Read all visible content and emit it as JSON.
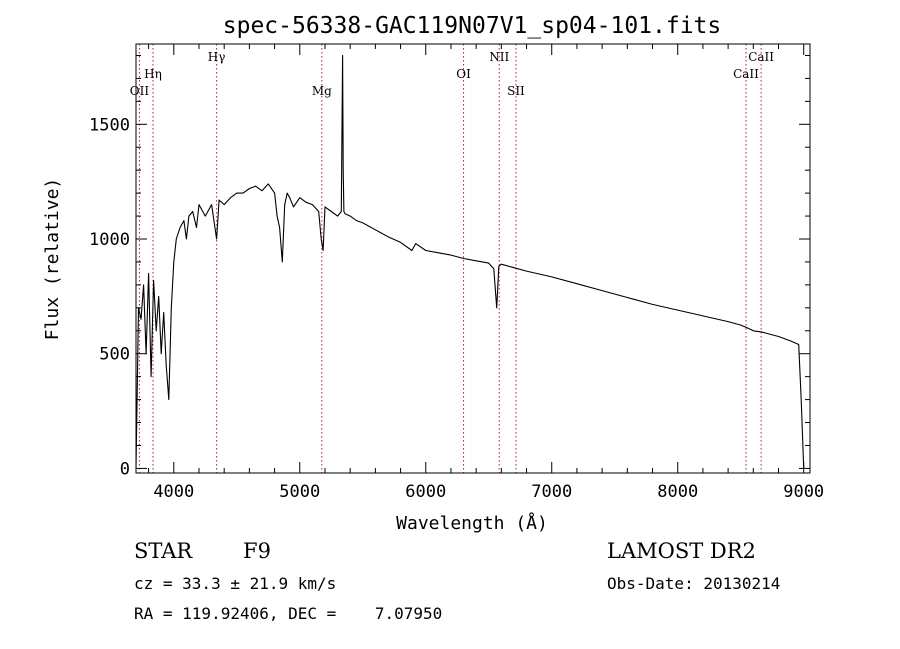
{
  "chart_data": {
    "type": "line",
    "title": "spec-56338-GAC119N07V1_sp04-101.fits",
    "xlabel": "Wavelength (Å)",
    "ylabel": "Flux (relative)",
    "xlim": [
      3700,
      9050
    ],
    "ylim": [
      -20,
      1850
    ],
    "xticks": [
      4000,
      5000,
      6000,
      7000,
      8000,
      9000
    ],
    "yticks": [
      0,
      500,
      1000,
      1500
    ],
    "grid": false,
    "series": [
      {
        "x": [
          3700,
          3720,
          3740,
          3760,
          3780,
          3800,
          3820,
          3840,
          3860,
          3880,
          3900,
          3920,
          3940,
          3960,
          3980,
          4000,
          4020,
          4050,
          4080,
          4100,
          4120,
          4150,
          4180,
          4200,
          4250,
          4300,
          4340,
          4360,
          4400,
          4450,
          4500,
          4550,
          4600,
          4650,
          4700,
          4750,
          4800,
          4820,
          4840,
          4861,
          4880,
          4900,
          4920,
          4950,
          5000,
          5050,
          5100,
          5150,
          5170,
          5185,
          5200,
          5250,
          5300,
          5330,
          5340,
          5345,
          5350,
          5360,
          5400,
          5450,
          5500,
          5600,
          5700,
          5800,
          5890,
          5920,
          6000,
          6100,
          6200,
          6300,
          6400,
          6500,
          6540,
          6563,
          6580,
          6600,
          6700,
          6800,
          7000,
          7200,
          7400,
          7600,
          7800,
          8000,
          8200,
          8400,
          8498,
          8542,
          8600,
          8662,
          8700,
          8800,
          8900,
          8960,
          8980,
          9000
        ],
        "y": [
          0,
          700,
          650,
          800,
          500,
          850,
          400,
          820,
          600,
          750,
          500,
          680,
          450,
          300,
          700,
          900,
          1000,
          1050,
          1080,
          1000,
          1100,
          1120,
          1050,
          1150,
          1100,
          1150,
          1000,
          1170,
          1150,
          1180,
          1200,
          1200,
          1220,
          1230,
          1210,
          1240,
          1200,
          1100,
          1050,
          900,
          1150,
          1200,
          1180,
          1140,
          1180,
          1160,
          1150,
          1120,
          1000,
          950,
          1140,
          1120,
          1100,
          1120,
          1800,
          1300,
          1120,
          1110,
          1100,
          1080,
          1070,
          1040,
          1010,
          985,
          950,
          980,
          950,
          940,
          930,
          915,
          905,
          895,
          870,
          700,
          880,
          890,
          875,
          860,
          835,
          805,
          775,
          745,
          715,
          690,
          665,
          640,
          625,
          615,
          600,
          595,
          590,
          575,
          555,
          540,
          300,
          0
        ]
      }
    ],
    "lines": [
      {
        "label": "OII",
        "x": 3727,
        "row": 2
      },
      {
        "label": "Hη",
        "x": 3835,
        "row": 1
      },
      {
        "label": "Hγ",
        "x": 4340,
        "row": 0
      },
      {
        "label": "Mg",
        "x": 5175,
        "row": 2
      },
      {
        "label": "OI",
        "x": 6300,
        "row": 1
      },
      {
        "label": "NII",
        "x": 6583,
        "row": 0
      },
      {
        "label": "SII",
        "x": 6716,
        "row": 2
      },
      {
        "label": "CaII",
        "x": 8542,
        "row": 1
      },
      {
        "label": "CaII",
        "x": 8662,
        "row": 0
      }
    ]
  },
  "info": {
    "object_class": "STAR",
    "subclass": "F9",
    "survey": "LAMOST DR2",
    "cz": "cz = 33.3 ± 21.9 km/s",
    "obs_date": "Obs-Date: 20130214",
    "radec": "RA = 119.92406, DEC =    7.07950"
  }
}
